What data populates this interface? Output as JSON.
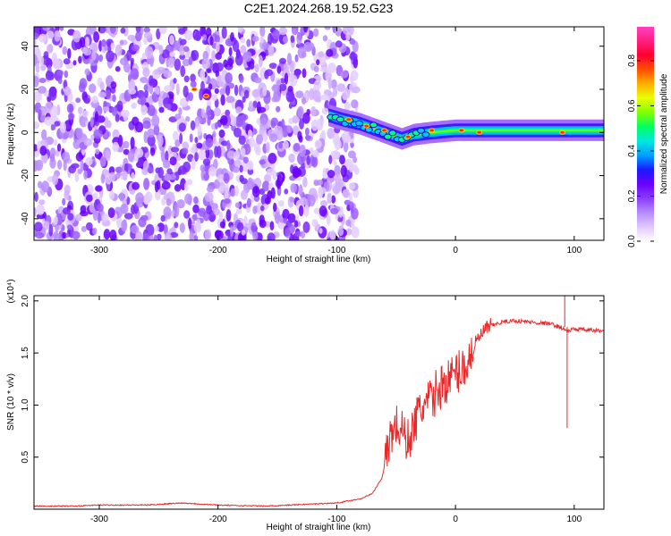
{
  "title": "C2E1.2024.268.19.52.G23",
  "chart_data": [
    {
      "type": "heatmap",
      "xlabel": "Height of straight line (km)",
      "ylabel": "Frequency (Hz)",
      "xlim": [
        -355,
        125
      ],
      "ylim": [
        -50,
        49
      ],
      "xticks": [
        -300,
        -200,
        -100,
        0,
        100
      ],
      "xtick_labels": [
        "-300",
        "-200",
        "-100",
        "0",
        "100"
      ],
      "yticks": [
        -40,
        -20,
        0,
        20,
        40
      ],
      "ytick_labels": [
        "-40",
        "-20",
        "0",
        "20",
        "40"
      ],
      "colorbar": {
        "label": "Normalized spectral amplitude",
        "range": [
          0,
          0.95
        ],
        "ticks": [
          0.0,
          0.2,
          0.4,
          0.6,
          0.8
        ],
        "tick_labels": [
          "0.0",
          "0.2",
          "0.4",
          "0.6",
          "0.8"
        ],
        "colors": [
          "#ffffff",
          "#e0c8ff",
          "#b58cff",
          "#8a3cff",
          "#6a00ff",
          "#1a1aff",
          "#00a0ff",
          "#00e8e0",
          "#00ff60",
          "#80ff00",
          "#e8ff00",
          "#ffb000",
          "#ff5000",
          "#ff0030",
          "#ff1f80",
          "#ff40c0"
        ]
      },
      "noise_region_x": [
        -355,
        -83
      ],
      "signal_band_center_hz": [
        [
          -107,
          8
        ],
        [
          -95,
          6
        ],
        [
          -80,
          4
        ],
        [
          -65,
          1
        ],
        [
          -45,
          -3
        ],
        [
          -35,
          -1
        ],
        [
          -20,
          0
        ],
        [
          0,
          1
        ],
        [
          30,
          1
        ],
        [
          125,
          1
        ]
      ],
      "peak_points": [
        [
          -220,
          20
        ],
        [
          -210,
          17
        ],
        [
          -90,
          6
        ],
        [
          -75,
          3
        ],
        [
          -60,
          1
        ],
        [
          -40,
          -2
        ],
        [
          -20,
          1
        ],
        [
          5,
          1
        ],
        [
          20,
          0
        ],
        [
          90,
          0
        ]
      ]
    },
    {
      "type": "line",
      "xlabel": "Height of straight line (km)",
      "ylabel": "SNR (10 * v/v)",
      "scale_label": "(x10⁴)",
      "xlim": [
        -355,
        125
      ],
      "ylim": [
        0,
        2.05
      ],
      "xticks": [
        -300,
        -200,
        -100,
        0,
        100
      ],
      "xtick_labels": [
        "-300",
        "-200",
        "-100",
        "0",
        "100"
      ],
      "yticks": [
        0.5,
        1.0,
        1.5,
        2.0
      ],
      "ytick_labels": [
        "0.5",
        "1.0",
        "1.5",
        "2.0"
      ],
      "color": "#e8292a",
      "series": [
        {
          "x": [
            -355,
            -320,
            -300,
            -260,
            -230,
            -200,
            -160,
            -120,
            -100,
            -80,
            -70,
            -62,
            -58,
            -55,
            -50,
            -45,
            -40,
            -35,
            -30,
            -25,
            -20,
            -15,
            -10,
            -5,
            0,
            5,
            10,
            15,
            20,
            25,
            30,
            40,
            50,
            60,
            70,
            80,
            85,
            90,
            92,
            95,
            100,
            110,
            125
          ],
          "y": [
            0.03,
            0.03,
            0.04,
            0.04,
            0.06,
            0.04,
            0.03,
            0.05,
            0.06,
            0.1,
            0.15,
            0.3,
            0.5,
            0.7,
            0.8,
            0.75,
            0.65,
            0.8,
            0.95,
            1.0,
            1.05,
            1.15,
            1.2,
            1.25,
            1.3,
            1.35,
            1.4,
            1.55,
            1.65,
            1.72,
            1.76,
            1.8,
            1.81,
            1.8,
            1.79,
            1.78,
            1.76,
            1.74,
            1.72,
            1.71,
            1.73,
            1.72,
            1.71
          ]
        }
      ]
    }
  ]
}
